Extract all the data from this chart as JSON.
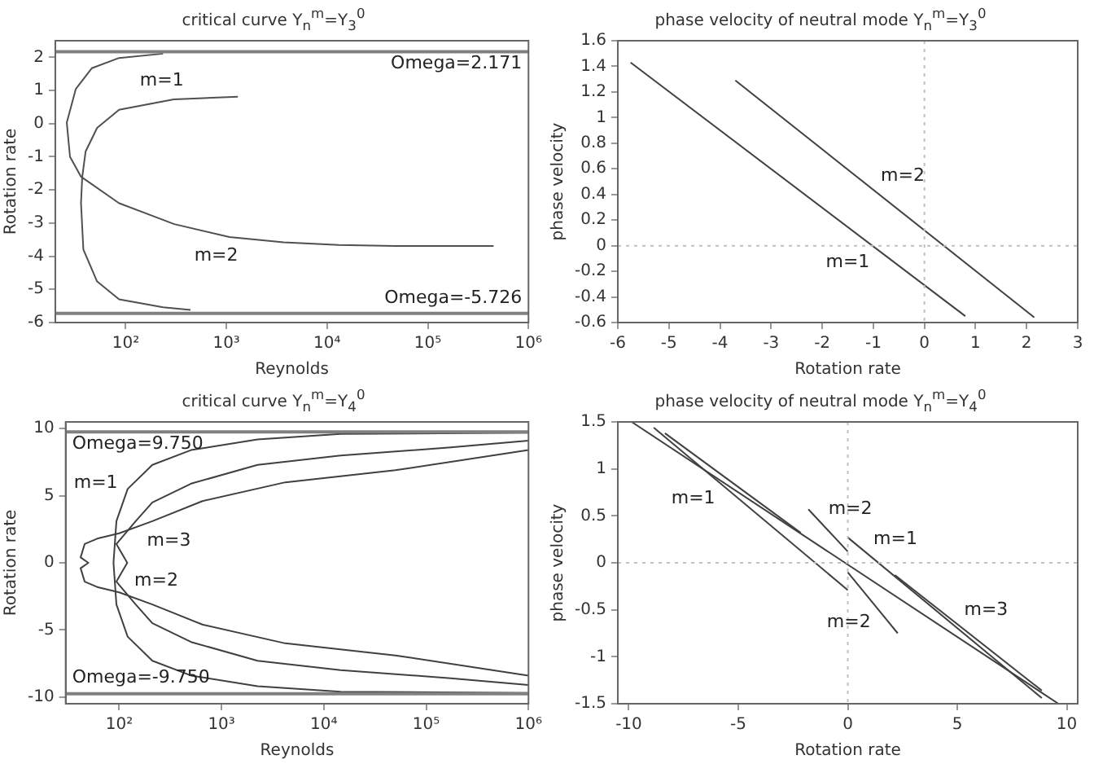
{
  "chart_data": [
    {
      "type": "line",
      "title": "critical curve Y$_{n}$$^{m}$=Y$_{3}$$^{0}$",
      "xlabel": "Reynolds",
      "ylabel": "Rotation rate",
      "log": "x",
      "xlim": [
        20,
        1000000
      ],
      "ylim": [
        -6,
        2.5
      ],
      "xticks": [
        {
          "value": 100,
          "label": "10²"
        },
        {
          "value": 1000,
          "label": "10³"
        },
        {
          "value": 10000,
          "label": "10⁴"
        },
        {
          "value": 100000,
          "label": "10⁵"
        },
        {
          "value": 1000000,
          "label": "10⁶"
        }
      ],
      "yticks": [
        -6,
        -5,
        -4,
        -3,
        -2,
        -1,
        0,
        1,
        2
      ],
      "grid": false,
      "legend": false,
      "marker": "none",
      "series": [
        {
          "name": "m=2",
          "color": "#505050",
          "x": [
            235,
            86,
            46,
            32,
            26,
            28,
            36,
            86,
            303,
            1070,
            3700,
            13000,
            47000,
            450000
          ],
          "values": [
            2.11,
            1.98,
            1.67,
            1.05,
            0.03,
            -1.0,
            -1.6,
            -2.4,
            -3.03,
            -3.42,
            -3.58,
            -3.66,
            -3.69,
            -3.69
          ]
        },
        {
          "name": "m=1",
          "color": "#505050",
          "x": [
            440,
            235,
            86,
            52,
            38,
            36,
            37,
            40,
            52,
            86,
            300,
            1300
          ],
          "values": [
            -5.62,
            -5.54,
            -5.3,
            -4.76,
            -3.8,
            -2.4,
            -1.62,
            -0.84,
            -0.13,
            0.42,
            0.73,
            0.81
          ]
        }
      ],
      "ref_lines": [
        {
          "axis": "y",
          "value": 2.171,
          "label": "Omega=2.171",
          "color": "#808080"
        },
        {
          "axis": "y",
          "value": -5.726,
          "label": "Omega=-5.726",
          "color": "#808080"
        }
      ]
    },
    {
      "type": "line",
      "title": "phase velocity of neutral mode Y$_{n}$$^{m}$=Y$_{3}$$^{0}$",
      "xlabel": "Rotation rate",
      "ylabel": "phase velocity",
      "xlim": [
        -6,
        3
      ],
      "ylim": [
        -0.6,
        1.6
      ],
      "xticks": [
        -6,
        -5,
        -4,
        -3,
        -2,
        -1,
        0,
        1,
        2,
        3
      ],
      "yticks": [
        -0.6,
        -0.4,
        -0.2,
        0,
        0.2,
        0.4,
        0.6,
        0.8,
        1,
        1.2,
        1.4,
        1.6
      ],
      "grid": false,
      "legend": false,
      "marker": "none",
      "series": [
        {
          "name": "m=1",
          "color": "#404040",
          "x": [
            -5.75,
            0.8
          ],
          "values": [
            1.43,
            -0.55
          ]
        },
        {
          "name": "m=2",
          "color": "#404040",
          "x": [
            -3.7,
            2.15
          ],
          "values": [
            1.29,
            -0.56
          ]
        }
      ],
      "ref_lines": [
        {
          "axis": "x",
          "value": 0,
          "color": "#c0c0c0",
          "line_style": "dotted"
        },
        {
          "axis": "y",
          "value": 0,
          "color": "#c0c0c0",
          "line_style": "dotted"
        }
      ]
    },
    {
      "type": "line",
      "title": "critical curve Y$_{n}$$^{m}$=Y$_{4}$$^{0}$",
      "xlabel": "Reynolds",
      "ylabel": "Rotation rate",
      "log": "x",
      "xlim": [
        30,
        1000000
      ],
      "ylim": [
        -10.5,
        10.5
      ],
      "xticks": [
        {
          "value": 100,
          "label": "10²"
        },
        {
          "value": 1000,
          "label": "10³"
        },
        {
          "value": 10000,
          "label": "10⁴"
        },
        {
          "value": 100000,
          "label": "10⁵"
        },
        {
          "value": 1000000,
          "label": "10⁶"
        }
      ],
      "yticks": [
        -10,
        -5,
        0,
        5,
        10
      ],
      "grid": false,
      "legend": false,
      "marker": "none",
      "series": [
        {
          "name": "m=1",
          "color": "#404040",
          "x": [
            1000000,
            14600,
            2250,
            504,
            211,
            121,
            94,
            88,
            94,
            121,
            211,
            504,
            2250,
            14600,
            1000000
          ],
          "values": [
            9.7,
            9.6,
            9.2,
            8.4,
            7.3,
            5.5,
            3.1,
            0,
            -3.1,
            -5.5,
            -7.3,
            -8.4,
            -9.2,
            -9.6,
            -9.7
          ]
        },
        {
          "name": "m=2",
          "color": "#404040",
          "x": [
            1000000,
            174000,
            14600,
            2250,
            504,
            211,
            145,
            94,
            120,
            94,
            145,
            211,
            504,
            2250,
            14600,
            174000,
            1000000
          ],
          "values": [
            9.1,
            8.6,
            8.0,
            7.3,
            5.9,
            4.5,
            3.1,
            1.4,
            0,
            -1.4,
            -3.1,
            -4.5,
            -5.9,
            -7.3,
            -8.0,
            -8.6,
            -9.1
          ]
        },
        {
          "name": "m=3",
          "color": "#404040",
          "x": [
            1000000,
            50000,
            4200,
            650,
            211,
            100,
            61,
            46,
            42,
            50,
            42,
            46,
            61,
            100,
            211,
            650,
            4200,
            50000,
            1000000
          ],
          "values": [
            8.4,
            6.9,
            6.0,
            4.6,
            3.1,
            2.2,
            1.8,
            1.4,
            0.4,
            0,
            -0.4,
            -1.4,
            -1.8,
            -2.2,
            -3.1,
            -4.6,
            -6.0,
            -6.9,
            -8.4
          ]
        }
      ],
      "ref_lines": [
        {
          "axis": "y",
          "value": 9.75,
          "label": "Omega=9.750",
          "color": "#808080"
        },
        {
          "axis": "y",
          "value": -9.75,
          "label": "Omega=-9.750",
          "color": "#808080"
        }
      ]
    },
    {
      "type": "line",
      "title": "phase velocity of neutral mode Y$_{n}$$^{m}$=Y$_{4}$$^{0}$",
      "xlabel": "Rotation rate",
      "ylabel": "phase velocity",
      "xlim": [
        -10.5,
        10.5
      ],
      "ylim": [
        -1.5,
        1.5
      ],
      "xticks": [
        -10,
        -5,
        0,
        5,
        10
      ],
      "yticks": [
        -1.5,
        -1,
        -0.5,
        0,
        0.5,
        1,
        1.5
      ],
      "grid": false,
      "legend": false,
      "marker": "none",
      "series": [
        {
          "color": "#404040",
          "x": [
            -9.87,
            9.62
          ],
          "values": [
            1.5,
            -1.5
          ]
        },
        {
          "name": "m=1",
          "color": "#404040",
          "x": [
            -8.86,
            0
          ],
          "values": [
            1.44,
            -0.29
          ]
        },
        {
          "name": "m=1",
          "color": "#404040",
          "x": [
            0,
            8.86
          ],
          "values": [
            0.27,
            -1.44
          ]
        },
        {
          "color": "#404040",
          "x": [
            -8.35,
            -2.15
          ],
          "values": [
            1.38,
            0.32
          ]
        },
        {
          "name": "m=2",
          "color": "#404040",
          "x": [
            -1.8,
            0
          ],
          "values": [
            0.57,
            0.12
          ]
        },
        {
          "name": "m=2",
          "color": "#404040",
          "x": [
            0,
            2.28
          ],
          "values": [
            -0.1,
            -0.75
          ]
        },
        {
          "name": "m=3",
          "color": "#404040",
          "x": [
            2.15,
            8.86
          ],
          "values": [
            -0.13,
            -1.36
          ]
        }
      ],
      "ref_lines": [
        {
          "axis": "x",
          "value": 0,
          "color": "#c0c0c0",
          "line_style": "dotted"
        },
        {
          "axis": "y",
          "value": 0,
          "color": "#c0c0c0",
          "line_style": "dotted"
        }
      ]
    }
  ]
}
